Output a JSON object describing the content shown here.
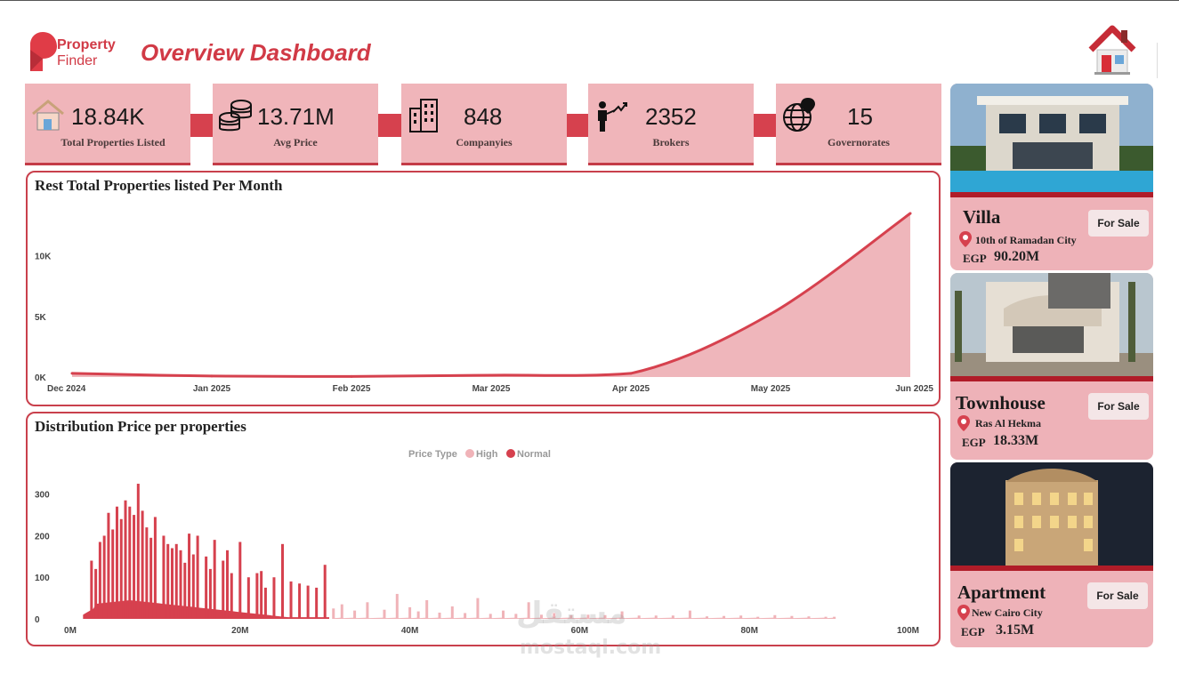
{
  "header": {
    "brand": "Property",
    "brand2": "Finder",
    "title": "Overview Dashboard"
  },
  "colors": {
    "accent": "#d13a46",
    "kpi_bg": "#f0b5ba",
    "card_bg": "#eeb2b8",
    "high": "#f0b3b8",
    "normal": "#d6414e"
  },
  "kpis": [
    {
      "value": "18.84K",
      "label": "Total Properties Listed",
      "icon": "house-icon"
    },
    {
      "value": "13.71M",
      "label": "Avg Price",
      "icon": "coins-icon"
    },
    {
      "value": "848",
      "label": "Companyies",
      "icon": "building-icon"
    },
    {
      "value": "2352",
      "label": "Brokers",
      "icon": "broker-icon"
    },
    {
      "value": "15",
      "label": "Governorates",
      "icon": "globe-pin-icon"
    }
  ],
  "properties": [
    {
      "type": "Villa",
      "status": "For Sale",
      "location": "10th of Ramadan City",
      "currency": "EGP",
      "price": "90.20M",
      "photo": "villa-photo"
    },
    {
      "type": "Townhouse",
      "status": "For Sale",
      "location": "Ras Al Hekma",
      "currency": "EGP",
      "price": "18.33M",
      "photo": "townhouse-photo"
    },
    {
      "type": "Apartment",
      "status": "For Sale",
      "location": "New Cairo City",
      "currency": "EGP",
      "price": "3.15M",
      "photo": "apartment-photo"
    }
  ],
  "watermark": {
    "arabic": "مستقل",
    "latin": "mostaql.com"
  },
  "chart_data": [
    {
      "type": "area",
      "title": "Rest Total Properties listed Per Month",
      "x": [
        "Dec 2024",
        "Jan 2025",
        "Feb 2025",
        "Mar 2025",
        "Apr 2025",
        "May 2025",
        "Jun 2025"
      ],
      "values": [
        300,
        80,
        50,
        150,
        300,
        5200,
        13500
      ],
      "ylim": [
        0,
        13500
      ],
      "yticks": [
        0,
        5000,
        10000
      ],
      "ytick_labels": [
        "0K",
        "5K",
        "10K"
      ],
      "grid": false
    },
    {
      "type": "bar",
      "title": "Distribution Price per properties",
      "xlabel": "",
      "ylabel": "",
      "legend_title": "Price Type",
      "legend_position": "top-center",
      "xlim": [
        0,
        100
      ],
      "x_unit": "M",
      "ylim": [
        0,
        340
      ],
      "yticks": [
        0,
        100,
        200,
        300
      ],
      "xtick_labels": [
        "0M",
        "20M",
        "40M",
        "60M",
        "80M",
        "100M"
      ],
      "series": [
        {
          "name": "High",
          "color": "#f0b3b8",
          "x": [
            31,
            32,
            33.5,
            35,
            37,
            38.5,
            40,
            41,
            42,
            43.5,
            45,
            46.5,
            48,
            49.5,
            51,
            52.5,
            54,
            55.5,
            57,
            59,
            61,
            63,
            65,
            67,
            69,
            71,
            73,
            75,
            77,
            79,
            81,
            83,
            85,
            87,
            89,
            90
          ],
          "y": [
            25,
            35,
            20,
            40,
            22,
            60,
            28,
            18,
            45,
            15,
            30,
            14,
            50,
            12,
            20,
            12,
            40,
            10,
            14,
            9,
            10,
            9,
            18,
            8,
            8,
            8,
            20,
            6,
            7,
            8,
            5,
            9,
            7,
            6,
            5,
            5
          ]
        },
        {
          "name": "Normal",
          "color": "#d6414e",
          "x": [
            2.5,
            3,
            3.5,
            4,
            4.5,
            5,
            5.5,
            6,
            6.5,
            7,
            7.5,
            8,
            8.5,
            9,
            9.5,
            10,
            11,
            11.5,
            12,
            12.5,
            13,
            13.5,
            14,
            14.5,
            15,
            16,
            16.5,
            17,
            18,
            18.5,
            19,
            20,
            21,
            22,
            22.5,
            23,
            24,
            25,
            26,
            27,
            28,
            29,
            30
          ],
          "y": [
            140,
            120,
            185,
            200,
            255,
            215,
            270,
            240,
            285,
            270,
            250,
            325,
            260,
            220,
            195,
            245,
            200,
            180,
            170,
            180,
            165,
            135,
            205,
            155,
            200,
            150,
            120,
            190,
            140,
            165,
            110,
            185,
            100,
            110,
            115,
            75,
            100,
            180,
            90,
            85,
            80,
            75,
            130
          ]
        }
      ]
    }
  ]
}
